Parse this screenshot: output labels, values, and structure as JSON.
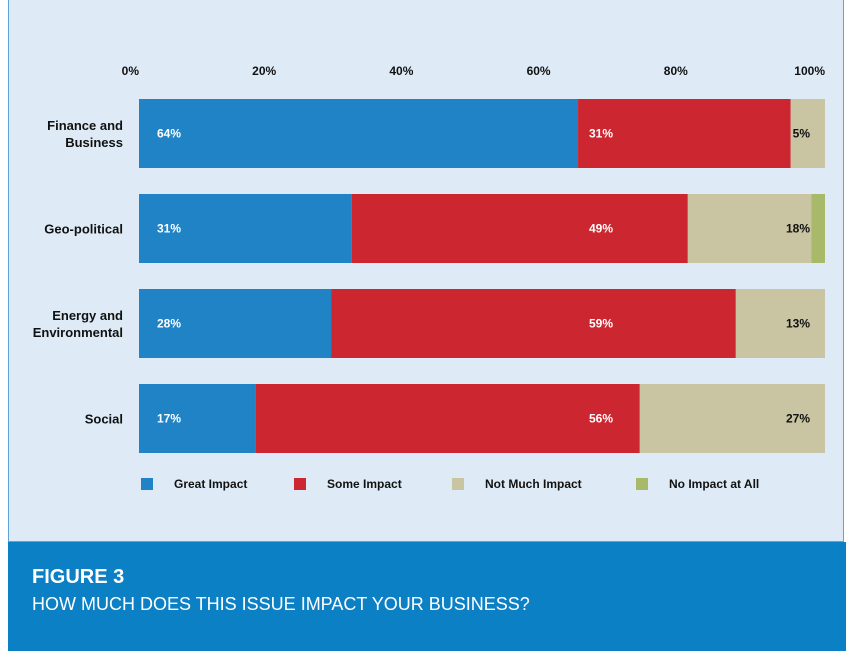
{
  "chart_data": {
    "type": "stacked-bar-horizontal",
    "figure_label": "FIGURE 3",
    "title": "HOW MUCH DOES THIS ISSUE IMPACT YOUR BUSINESS?",
    "categories": [
      "Finance and Business",
      "Geo-political",
      "Energy and Environmental",
      "Social"
    ],
    "xlim": [
      0,
      100
    ],
    "xticks": [
      {
        "value": 0,
        "label": "0%"
      },
      {
        "value": 20,
        "label": "20%"
      },
      {
        "value": 40,
        "label": "40%"
      },
      {
        "value": 60,
        "label": "60%"
      },
      {
        "value": 80,
        "label": "80%"
      },
      {
        "value": 100,
        "label": "100%"
      }
    ],
    "series": [
      {
        "name": "Great Impact",
        "color": "#1f83c6",
        "values": [
          64,
          31,
          28,
          17
        ],
        "value_labels": [
          "64%",
          "31%",
          "28%",
          "17%"
        ]
      },
      {
        "name": "Some Impact",
        "color": "#cc2630",
        "values": [
          31,
          49,
          59,
          56
        ],
        "value_labels": [
          "31%",
          "49%",
          "59%",
          "56%"
        ]
      },
      {
        "name": "Not Much Impact",
        "color": "#c9c4a2",
        "values": [
          5,
          18,
          13,
          27
        ],
        "value_labels": [
          "5%",
          "18%",
          "13%",
          "27%"
        ]
      },
      {
        "name": "No Impact at All",
        "color": "#a8ba6a",
        "values": [
          0,
          2,
          0,
          0
        ]
      }
    ]
  }
}
